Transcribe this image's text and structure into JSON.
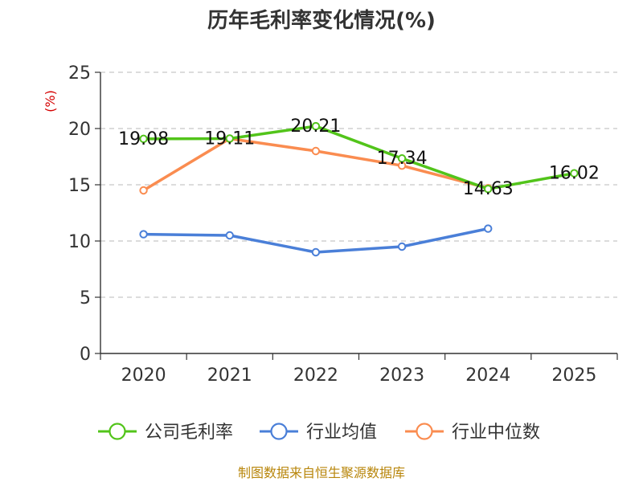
{
  "chart_data": {
    "type": "line",
    "title": "历年毛利率变化情况(%)",
    "unit_label": "(%)",
    "categories": [
      "2020",
      "2021",
      "2022",
      "2023",
      "2024",
      "2025"
    ],
    "ylim": [
      0,
      25
    ],
    "yticks": [
      0,
      5,
      10,
      15,
      20,
      25
    ],
    "grid": true,
    "legend_position": "bottom",
    "series": [
      {
        "name": "公司毛利率",
        "color": "#52c41a",
        "values": [
          19.08,
          19.11,
          20.21,
          17.34,
          14.63,
          16.02
        ],
        "labels": [
          "19.08",
          "19.11",
          "20.21",
          "17.34",
          "14.63",
          "16.02"
        ]
      },
      {
        "name": "行业均值",
        "color": "#4a7fd8",
        "values": [
          10.6,
          10.5,
          9.0,
          9.5,
          11.1,
          null
        ]
      },
      {
        "name": "行业中位数",
        "color": "#fa8c50",
        "values": [
          14.5,
          19.1,
          18.0,
          16.7,
          14.7,
          null
        ]
      }
    ],
    "source": "制图数据来自恒生聚源数据库"
  }
}
